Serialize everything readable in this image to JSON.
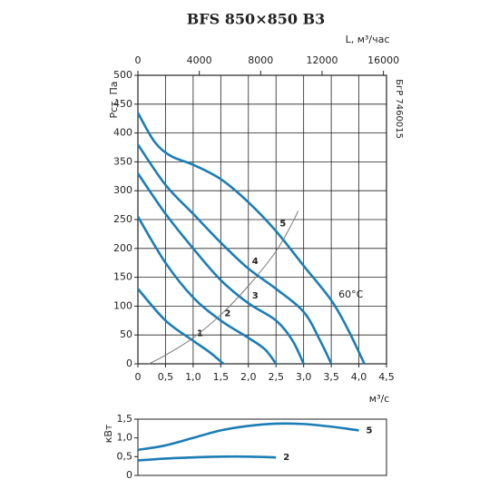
{
  "chart_data": [
    {
      "type": "line",
      "title": "BFS 850×850 B3",
      "side_text": "БгР 7460015",
      "xlabel": "м³/с",
      "ylabel": "Рст, Па",
      "x2label": "L, м³/час",
      "xlim": [
        0,
        4.5
      ],
      "xticks": [
        0,
        {
          "value": 0.5,
          "label": "0,5"
        },
        {
          "value": 1,
          "label": "1,0"
        },
        {
          "value": 1.5,
          "label": "1,5"
        },
        {
          "value": 2,
          "label": "2,0"
        },
        {
          "value": 2.5,
          "label": "2,5"
        },
        {
          "value": 3,
          "label": "3,0"
        },
        {
          "value": 3.5,
          "label": "3,5"
        },
        {
          "value": 4,
          "label": "4,0"
        },
        {
          "value": 4.5,
          "label": "4,5"
        }
      ],
      "x2lim": [
        0,
        16200
      ],
      "x2ticks": [
        0,
        4000,
        8000,
        12000,
        16000
      ],
      "ylim": [
        0,
        500
      ],
      "yticks": [
        0,
        50,
        100,
        150,
        200,
        250,
        300,
        350,
        400,
        450,
        500
      ],
      "grid": true,
      "series": [
        {
          "name": "1",
          "color": "#1b7db5",
          "x": [
            0,
            0.5,
            1.0,
            1.3,
            1.55
          ],
          "values": [
            130,
            75,
            40,
            20,
            0
          ]
        },
        {
          "name": "2",
          "color": "#1b7db5",
          "x": [
            0,
            0.5,
            1.0,
            1.5,
            2.0,
            2.3,
            2.5
          ],
          "values": [
            255,
            175,
            115,
            75,
            45,
            25,
            0
          ]
        },
        {
          "name": "3",
          "color": "#1b7db5",
          "x": [
            0,
            0.5,
            1.0,
            1.5,
            2.0,
            2.5,
            2.8,
            3.0
          ],
          "values": [
            330,
            260,
            200,
            145,
            105,
            75,
            40,
            0
          ]
        },
        {
          "name": "4",
          "color": "#1b7db5",
          "x": [
            0,
            0.5,
            1.0,
            1.5,
            2.0,
            2.5,
            3.0,
            3.3,
            3.5
          ],
          "values": [
            380,
            310,
            260,
            210,
            165,
            130,
            90,
            40,
            0
          ]
        },
        {
          "name": "5",
          "color": "#1b7db5",
          "x": [
            0,
            0.3,
            0.6,
            1.0,
            1.5,
            2.0,
            2.5,
            3.0,
            3.5,
            3.8,
            4.1
          ],
          "values": [
            435,
            385,
            360,
            345,
            320,
            280,
            230,
            170,
            110,
            60,
            0
          ]
        },
        {
          "color": "#777777",
          "x": [
            0.2,
            0.5,
            1.0,
            1.5,
            2.0,
            2.5,
            2.8,
            2.9
          ],
          "values": [
            0,
            15,
            45,
            85,
            135,
            195,
            245,
            265
          ]
        }
      ],
      "annotations": [
        {
          "text": "60°C"
        }
      ]
    },
    {
      "type": "line",
      "ylabel": "кВт",
      "xlim": [
        0,
        4.5
      ],
      "ylim": [
        0,
        1.5
      ],
      "yticks": [
        0,
        {
          "value": 0.5,
          "label": "0,5"
        },
        {
          "value": 1,
          "label": "1,0"
        },
        {
          "value": 1.5,
          "label": "1,5"
        }
      ],
      "series": [
        {
          "name": "5",
          "color": "#1b7db5",
          "x": [
            0,
            0.5,
            1.0,
            1.5,
            2.0,
            2.5,
            3.0,
            3.5,
            4.0
          ],
          "values": [
            0.68,
            0.8,
            1.0,
            1.2,
            1.32,
            1.38,
            1.37,
            1.3,
            1.2
          ]
        },
        {
          "name": "2",
          "color": "#1b7db5",
          "x": [
            0,
            0.5,
            1.0,
            1.5,
            2.0,
            2.5
          ],
          "values": [
            0.4,
            0.45,
            0.48,
            0.5,
            0.5,
            0.48
          ]
        }
      ]
    }
  ]
}
